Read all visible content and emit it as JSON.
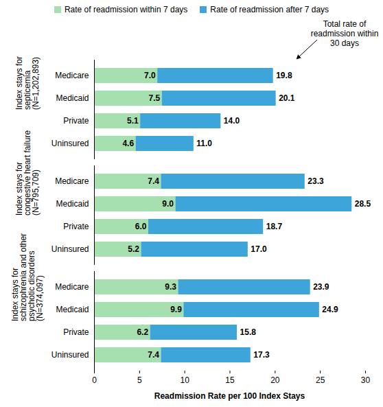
{
  "chart_data": {
    "type": "bar",
    "orientation": "horizontal",
    "stacked": true,
    "data_labels": true,
    "xlabel": "Readmission Rate per 100 Index Stays",
    "xlim": [
      0,
      30
    ],
    "xticks": [
      0,
      5,
      10,
      15,
      20,
      25,
      30
    ],
    "annotation": "Total rate of readmission within 30 days",
    "categories": [
      "Medicare",
      "Medicaid",
      "Private",
      "Uninsured"
    ],
    "groups": [
      "Index stays for septicemia (N=1,202,893)",
      "Index stays for congestive heart failure (N=795,709)",
      "Index stays for schizophrenia and other psychotic disorders (N=374,097)"
    ],
    "series": [
      {
        "name": "Rate of readmission within 7 days",
        "color": "#a6e0b1",
        "values": [
          [
            7.0,
            7.5,
            5.1,
            4.6
          ],
          [
            7.4,
            9.0,
            6.0,
            5.2
          ],
          [
            9.3,
            9.9,
            6.2,
            7.4
          ]
        ],
        "value_labels": [
          [
            "7.0",
            "7.5",
            "5.1",
            "4.6"
          ],
          [
            "7.4",
            "9.0",
            "6.0",
            "5.2"
          ],
          [
            "9.3",
            "9.9",
            "6.2",
            "7.4"
          ]
        ]
      },
      {
        "name": "Rate of readmission after 7 days",
        "color": "#3ea5da",
        "values": [
          [
            12.8,
            12.6,
            8.9,
            6.4
          ],
          [
            15.9,
            19.5,
            12.7,
            11.8
          ],
          [
            14.6,
            15.0,
            9.6,
            9.9
          ]
        ]
      }
    ],
    "totals": [
      [
        19.8,
        20.1,
        14.0,
        11.0
      ],
      [
        23.3,
        28.5,
        18.7,
        17.0
      ],
      [
        23.9,
        24.9,
        15.8,
        17.3
      ]
    ],
    "total_labels": [
      [
        "19.8",
        "20.1",
        "14.0",
        "11.0"
      ],
      [
        "23.3",
        "28.5",
        "18.7",
        "17.0"
      ],
      [
        "23.9",
        "24.9",
        "15.8",
        "17.3"
      ]
    ]
  }
}
